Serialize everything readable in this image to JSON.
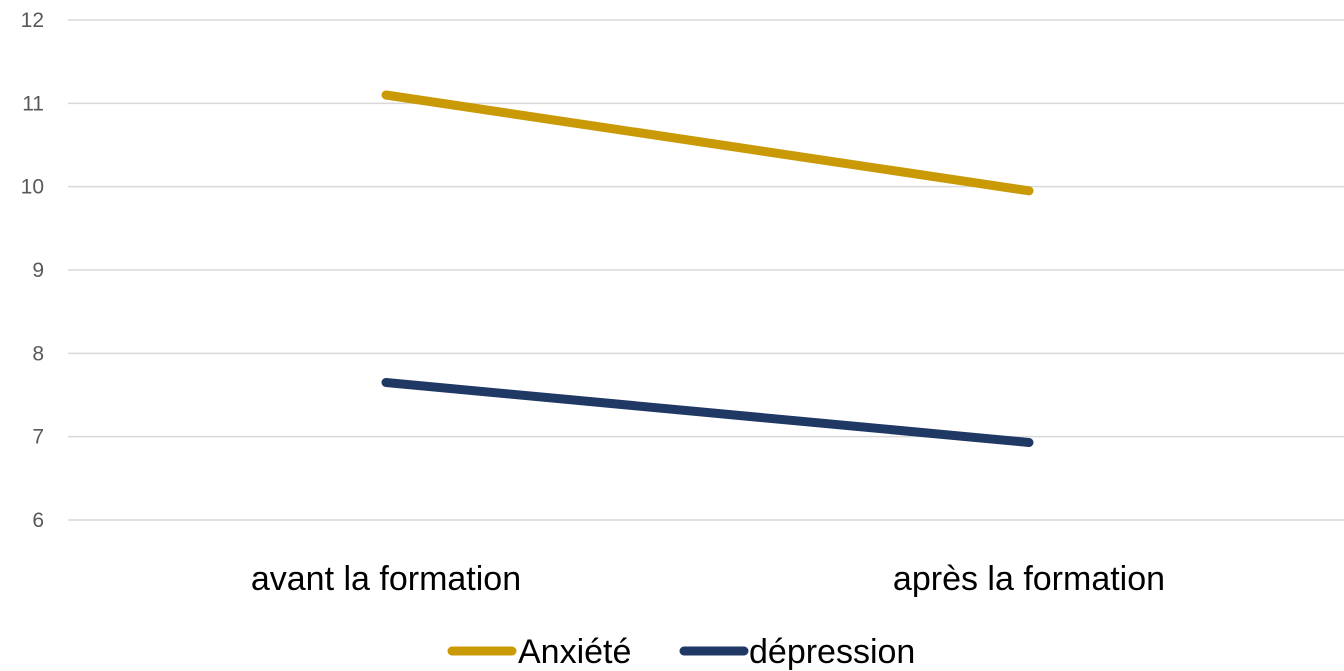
{
  "chart_data": {
    "type": "line",
    "categories": [
      "avant la formation",
      "après la formation"
    ],
    "series": [
      {
        "name": "Anxiété",
        "values": [
          11.1,
          9.95
        ],
        "color": "#C99A06"
      },
      {
        "name": "dépression",
        "values": [
          7.65,
          6.93
        ],
        "color": "#1F3864"
      }
    ],
    "ylim": [
      6,
      12
    ],
    "yticks": [
      "6",
      "7",
      "8",
      "9",
      "10",
      "11",
      "12"
    ],
    "grid": true,
    "legend_position": "bottom",
    "title": "",
    "xlabel": "",
    "ylabel": ""
  }
}
